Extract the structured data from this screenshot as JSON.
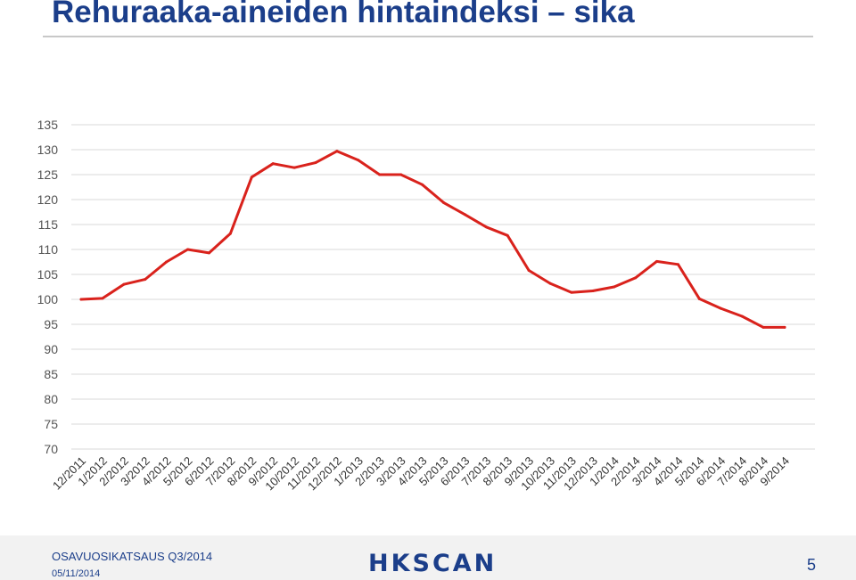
{
  "title": "Rehuraaka-aineiden hintaindeksi – sika",
  "footer": {
    "report": "OSAVUOSIKATSAUS Q3/2014",
    "date": "05/11/2014",
    "logo": "HKSCAN",
    "page": "5"
  },
  "colors": {
    "title": "#1b3e8a",
    "line": "#d9221c",
    "grid": "#d9d9d9"
  },
  "chart_data": {
    "type": "line",
    "title": "",
    "xlabel": "",
    "ylabel": "",
    "ylim": [
      70,
      135
    ],
    "yticks": [
      135,
      130,
      125,
      120,
      115,
      110,
      105,
      100,
      95,
      90,
      85,
      80,
      75,
      70
    ],
    "grid": true,
    "categories": [
      "12/2011",
      "1/2012",
      "2/2012",
      "3/2012",
      "4/2012",
      "5/2012",
      "6/2012",
      "7/2012",
      "8/2012",
      "9/2012",
      "10/2012",
      "11/2012",
      "12/2012",
      "1/2013",
      "2/2013",
      "3/2013",
      "4/2013",
      "5/2013",
      "6/2013",
      "7/2013",
      "8/2013",
      "9/2013",
      "10/2013",
      "11/2013",
      "12/2013",
      "1/2014",
      "2/2014",
      "3/2014",
      "4/2014",
      "5/2014",
      "6/2014",
      "7/2014",
      "8/2014",
      "9/2014"
    ],
    "series": [
      {
        "values": [
          100.0,
          100.2,
          103.0,
          104.0,
          107.5,
          110.0,
          109.3,
          113.2,
          124.5,
          127.2,
          126.4,
          127.4,
          129.7,
          127.9,
          125.0,
          125.0,
          123.0,
          119.4,
          117.0,
          114.5,
          112.8,
          105.8,
          103.2,
          101.4,
          101.7,
          102.5,
          104.3,
          107.6,
          107.0,
          100.1,
          98.2,
          96.6,
          94.4,
          94.4
        ]
      }
    ]
  }
}
